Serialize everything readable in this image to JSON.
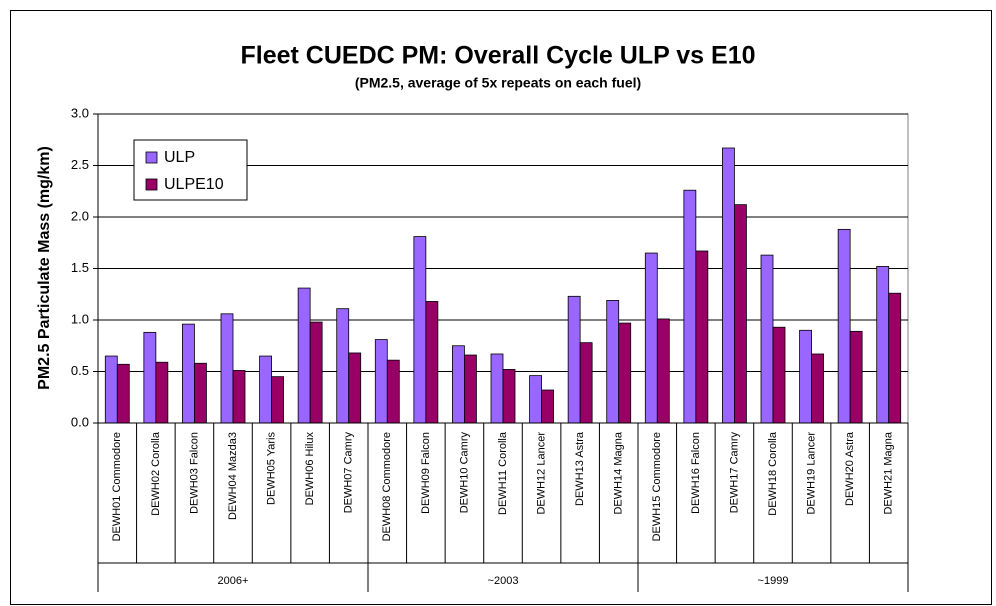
{
  "chart_data": {
    "type": "bar",
    "title": "Fleet CUEDC PM: Overall Cycle ULP vs E10",
    "subtitle": "(PM2.5, average of 5x repeats on each fuel)",
    "y_label": "PM2.5 Particulate Mass (mg/km)",
    "categories": [
      "DEWH01 Commodore",
      "DEWH02 Corolla",
      "DEWH03 Falcon",
      "DEWH04 Mazda3",
      "DEWH05 Yaris",
      "DEWH06 Hilux",
      "DEWH07 Camry",
      "DEWH08 Commodore",
      "DEWH09 Falcon",
      "DEWH10 Camry",
      "DEWH11 Corolla",
      "DEWH12 Lancer",
      "DEWH13 Astra",
      "DEWH14 Magna",
      "DEWH15 Commodore",
      "DEWH16 Falcon",
      "DEWH17 Camry",
      "DEWH18 Corolla",
      "DEWH19 Lancer",
      "DEWH20 Astra",
      "DEWH21 Magna"
    ],
    "groups": [
      "2006+",
      "~2003",
      "~1999"
    ],
    "series": [
      {
        "name": "ULP",
        "color": "#9966ff",
        "values": [
          0.65,
          0.88,
          0.96,
          1.06,
          0.65,
          1.31,
          1.11,
          0.81,
          1.81,
          0.75,
          0.67,
          0.46,
          1.23,
          1.19,
          1.65,
          2.26,
          2.67,
          1.63,
          0.9,
          1.88,
          1.52
        ]
      },
      {
        "name": "ULPE10",
        "color": "#990066",
        "values": [
          0.57,
          0.59,
          0.58,
          0.51,
          0.45,
          0.98,
          0.68,
          0.61,
          1.18,
          0.66,
          0.52,
          0.32,
          0.78,
          0.97,
          1.01,
          1.67,
          2.12,
          0.93,
          0.67,
          0.89,
          1.26
        ]
      }
    ],
    "ylim": [
      0,
      3
    ],
    "yticks": [
      {
        "value": 0,
        "label": "0.0"
      },
      {
        "value": 0.5,
        "label": "0.5"
      },
      {
        "value": 1,
        "label": "1.0"
      },
      {
        "value": 1.5,
        "label": "1.5"
      },
      {
        "value": 2,
        "label": "2.0"
      },
      {
        "value": 2.5,
        "label": "2.5"
      },
      {
        "value": 3,
        "label": "3.0"
      }
    ],
    "grid": true,
    "legend": "top-left"
  }
}
